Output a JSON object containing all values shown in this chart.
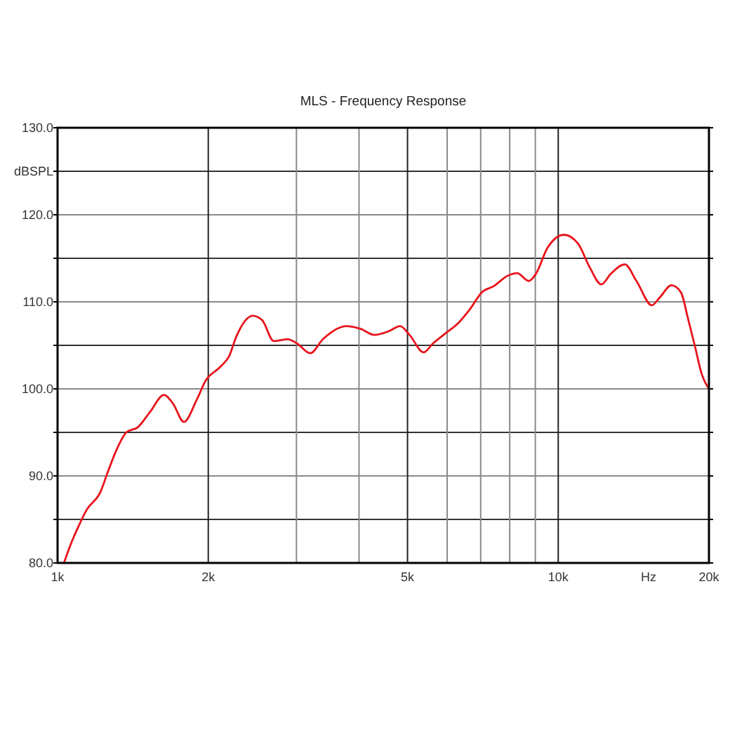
{
  "chart_data": {
    "type": "line",
    "title": "MLS - Frequency Response",
    "xlabel": "Hz",
    "ylabel": "dBSPL",
    "log": "x",
    "grid": true,
    "xlim": [
      1000,
      20000
    ],
    "ylim": [
      80,
      130
    ],
    "xticks": [
      {
        "value": 1000,
        "label": "1k"
      },
      {
        "value": 2000,
        "label": "2k"
      },
      {
        "value": 3000,
        "label": null
      },
      {
        "value": 4000,
        "label": null
      },
      {
        "value": 5000,
        "label": "5k"
      },
      {
        "value": 6000,
        "label": null
      },
      {
        "value": 7000,
        "label": null
      },
      {
        "value": 8000,
        "label": null
      },
      {
        "value": 9000,
        "label": null
      },
      {
        "value": 10000,
        "label": "10k"
      },
      {
        "value": 20000,
        "label": "20k"
      }
    ],
    "yticks": [
      {
        "value": 80,
        "label": "80.0"
      },
      {
        "value": 85,
        "label": null
      },
      {
        "value": 90,
        "label": "90.0"
      },
      {
        "value": 95,
        "label": null
      },
      {
        "value": 100,
        "label": "100.0"
      },
      {
        "value": 105,
        "label": null
      },
      {
        "value": 110,
        "label": "110.0"
      },
      {
        "value": 115,
        "label": null
      },
      {
        "value": 120,
        "label": "120.0"
      },
      {
        "value": 125,
        "label": null
      },
      {
        "value": 130,
        "label": "130.0"
      }
    ],
    "x": [
      1030,
      1060,
      1095,
      1143,
      1219,
      1259,
      1314,
      1372,
      1447,
      1528,
      1631,
      1701,
      1788,
      1895,
      1979,
      2111,
      2203,
      2275,
      2454,
      2562,
      2703,
      2884,
      3010,
      3197,
      3388,
      3775,
      4026,
      4295,
      4579,
      4833,
      5047,
      5383,
      5617,
      5930,
      6326,
      6673,
      7042,
      7434,
      7930,
      8276,
      8737,
      9023,
      9520,
      10270,
      10950,
      11550,
      12190,
      12730,
      13580,
      14330,
      15380,
      15950,
      16830,
      17580,
      18160,
      18750,
      19370,
      20000
    ],
    "series": [
      {
        "color": "#e8141c",
        "values": [
          80.0,
          82.0,
          83.9,
          86.1,
          88.2,
          90.4,
          93.1,
          95.0,
          95.6,
          97.3,
          99.3,
          98.3,
          96.2,
          98.7,
          101.0,
          102.5,
          103.8,
          106.0,
          108.4,
          107.9,
          105.5,
          105.7,
          105.2,
          104.1,
          105.7,
          107.2,
          106.9,
          106.2,
          106.6,
          107.2,
          106.2,
          104.2,
          105.2,
          106.3,
          107.6,
          109.2,
          111.1,
          111.8,
          113.0,
          113.3,
          112.4,
          113.2,
          116.2,
          117.7,
          116.7,
          114.0,
          112.0,
          113.2,
          114.3,
          112.4,
          109.6,
          110.5,
          111.9,
          111.1,
          108.1,
          104.9,
          101.6,
          100.0
        ]
      }
    ]
  }
}
